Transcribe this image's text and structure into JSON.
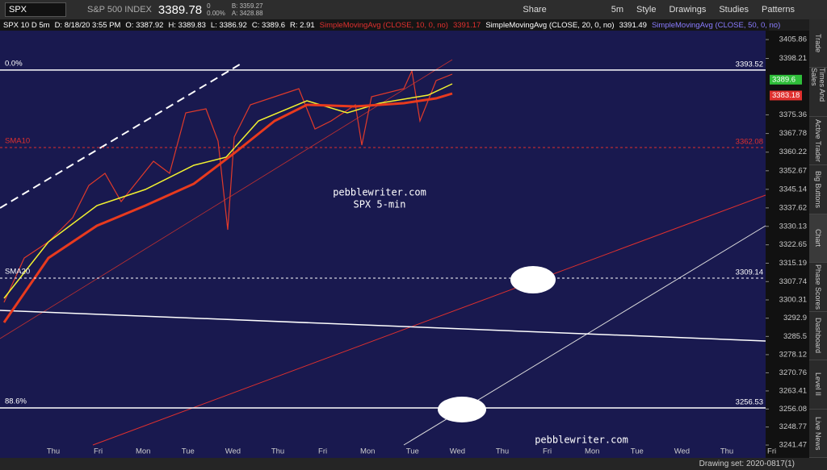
{
  "toolbar": {
    "symbol": "SPX",
    "name": "S&P 500 INDEX",
    "last": "3389.78",
    "change": "0",
    "change_pct": "0.00%",
    "bid": "B: 3359.27",
    "ask": "A: 3428.88",
    "interval": "5m",
    "buttons": [
      "Share",
      "Style",
      "Drawings",
      "Studies",
      "Patterns"
    ]
  },
  "info_bar": {
    "symbol": "SPX 10 D 5m",
    "date": "D: 8/18/20 3:55 PM",
    "open": "O: 3387.92",
    "high": "H: 3389.83",
    "low": "L: 3386.92",
    "close": "C: 3389.6",
    "range": "R: 2.91",
    "studies": [
      {
        "label": "SimpleMovingAvg (CLOSE, 10, 0, no)",
        "value": "3391.17",
        "color": "#e0302e"
      },
      {
        "label": "SimpleMovingAvg (CLOSE, 20, 0, no)",
        "value": "3391.49",
        "color": "#ffffff"
      },
      {
        "label": "SimpleMovingAvg (CLOSE, 50, 0, no)",
        "value": "",
        "color": "#8a7cff"
      }
    ]
  },
  "chart": {
    "ylim": [
      3240.5,
      3412.1
    ],
    "yticks": [
      3405.86,
      3398.21,
      3375.36,
      3367.78,
      3360.22,
      3352.67,
      3345.14,
      3337.62,
      3330.13,
      3322.65,
      3315.19,
      3307.74,
      3300.31,
      3292.9,
      3285.5,
      3278.12,
      3270.76,
      3263.41,
      3256.08,
      3248.77,
      3241.47
    ],
    "price_lines": [
      {
        "label": "0.0%",
        "value": 3393.52,
        "color": "#ffffff",
        "dash": false
      },
      {
        "label": "SMA10",
        "value": 3362.08,
        "color": "#e0302e",
        "dash": true
      },
      {
        "label": "SMA20",
        "value": 3309.14,
        "color": "#ffffff",
        "dash": true
      },
      {
        "label": "88.6%",
        "value": 3256.53,
        "color": "#ffffff",
        "dash": false
      }
    ],
    "markers": [
      {
        "value": 3389.6,
        "color": "#2fbf3a"
      },
      {
        "value": 3383.18,
        "color": "#e0302e"
      }
    ],
    "watermark": [
      "pebblewriter.com",
      "SPX 5-min"
    ],
    "footer_mark": "pebblewriter.com",
    "xlabels": [
      "Thu",
      "Fri",
      "Mon",
      "Tue",
      "Wed",
      "Thu",
      "Fri",
      "Mon",
      "Tue",
      "Wed",
      "Thu",
      "Fri",
      "Mon",
      "Tue",
      "Wed",
      "Thu",
      "Fri"
    ]
  },
  "side_tabs": [
    "Trade",
    "Times And Sales",
    "Active Trader",
    "Big Buttons",
    "Chart",
    "Phase Scores",
    "Dashboard",
    "Level II",
    "Live News"
  ],
  "status": "Drawing set: 2020-0817(1)"
}
